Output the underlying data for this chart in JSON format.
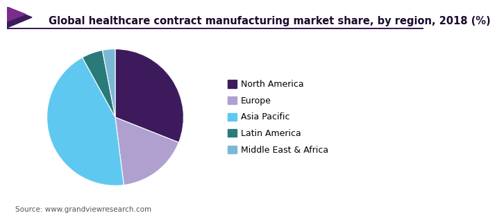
{
  "title": "Global healthcare contract manufacturing market share, by region, 2018 (%)",
  "source": "Source: www.grandviewresearch.com",
  "labels": [
    "North America",
    "Europe",
    "Asia Pacific",
    "Latin America",
    "Middle East & Africa"
  ],
  "values": [
    31,
    17,
    44,
    5,
    3
  ],
  "colors": [
    "#3d1a5c",
    "#b0a0d0",
    "#5ec8f0",
    "#2a7a7a",
    "#7ab8d8"
  ],
  "startangle": 90,
  "title_fontsize": 10.5,
  "legend_fontsize": 9,
  "source_fontsize": 7.5,
  "background_color": "#ffffff",
  "wedge_linewidth": 0.8,
  "wedge_edgecolor": "#ffffff",
  "header_line_color": "#3d1a5c",
  "header_chevron_color1": "#7b2d8b",
  "header_chevron_color2": "#3d1a5c"
}
